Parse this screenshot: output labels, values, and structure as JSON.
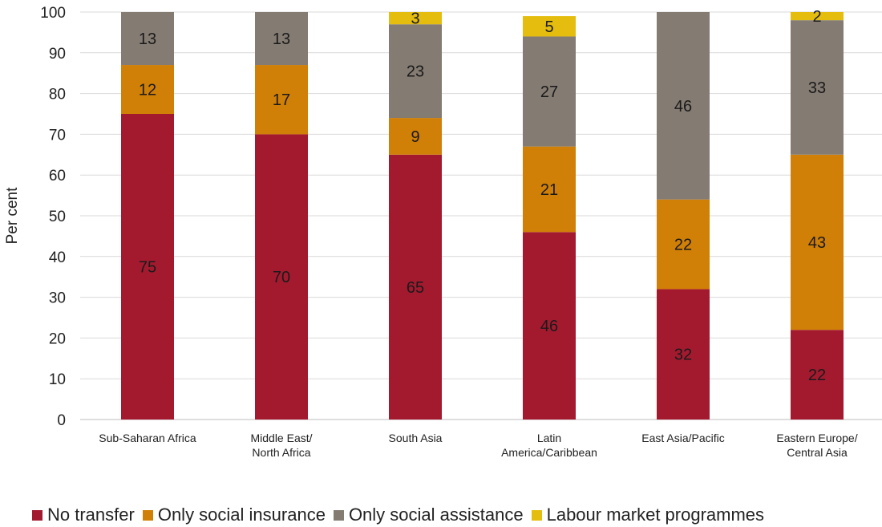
{
  "chart_data": {
    "type": "bar",
    "stacked": true,
    "title": "",
    "xlabel": "",
    "ylabel": "Per cent",
    "ylim": [
      0,
      100
    ],
    "yticks": [
      0,
      10,
      20,
      30,
      40,
      50,
      60,
      70,
      80,
      90,
      100
    ],
    "grid": true,
    "legend_position": "bottom",
    "categories": [
      [
        "Sub-Saharan Africa"
      ],
      [
        "Middle East/",
        "North Africa"
      ],
      [
        "South Asia"
      ],
      [
        "Latin",
        "America/Caribbean"
      ],
      [
        "East Asia/Pacific"
      ],
      [
        "Eastern Europe/",
        "Central Asia"
      ]
    ],
    "series": [
      {
        "name": "No transfer",
        "color": "#a31a2f",
        "values": [
          75,
          70,
          65,
          46,
          32,
          22
        ]
      },
      {
        "name": "Only social insurance",
        "color": "#d07f07",
        "values": [
          12,
          17,
          9,
          21,
          22,
          43
        ]
      },
      {
        "name": "Only social assistance",
        "color": "#847b72",
        "values": [
          13,
          13,
          23,
          27,
          46,
          33
        ]
      },
      {
        "name": "Labour market programmes",
        "color": "#e4bd0e",
        "values": [
          0,
          0,
          3,
          5,
          0,
          2
        ]
      }
    ]
  }
}
